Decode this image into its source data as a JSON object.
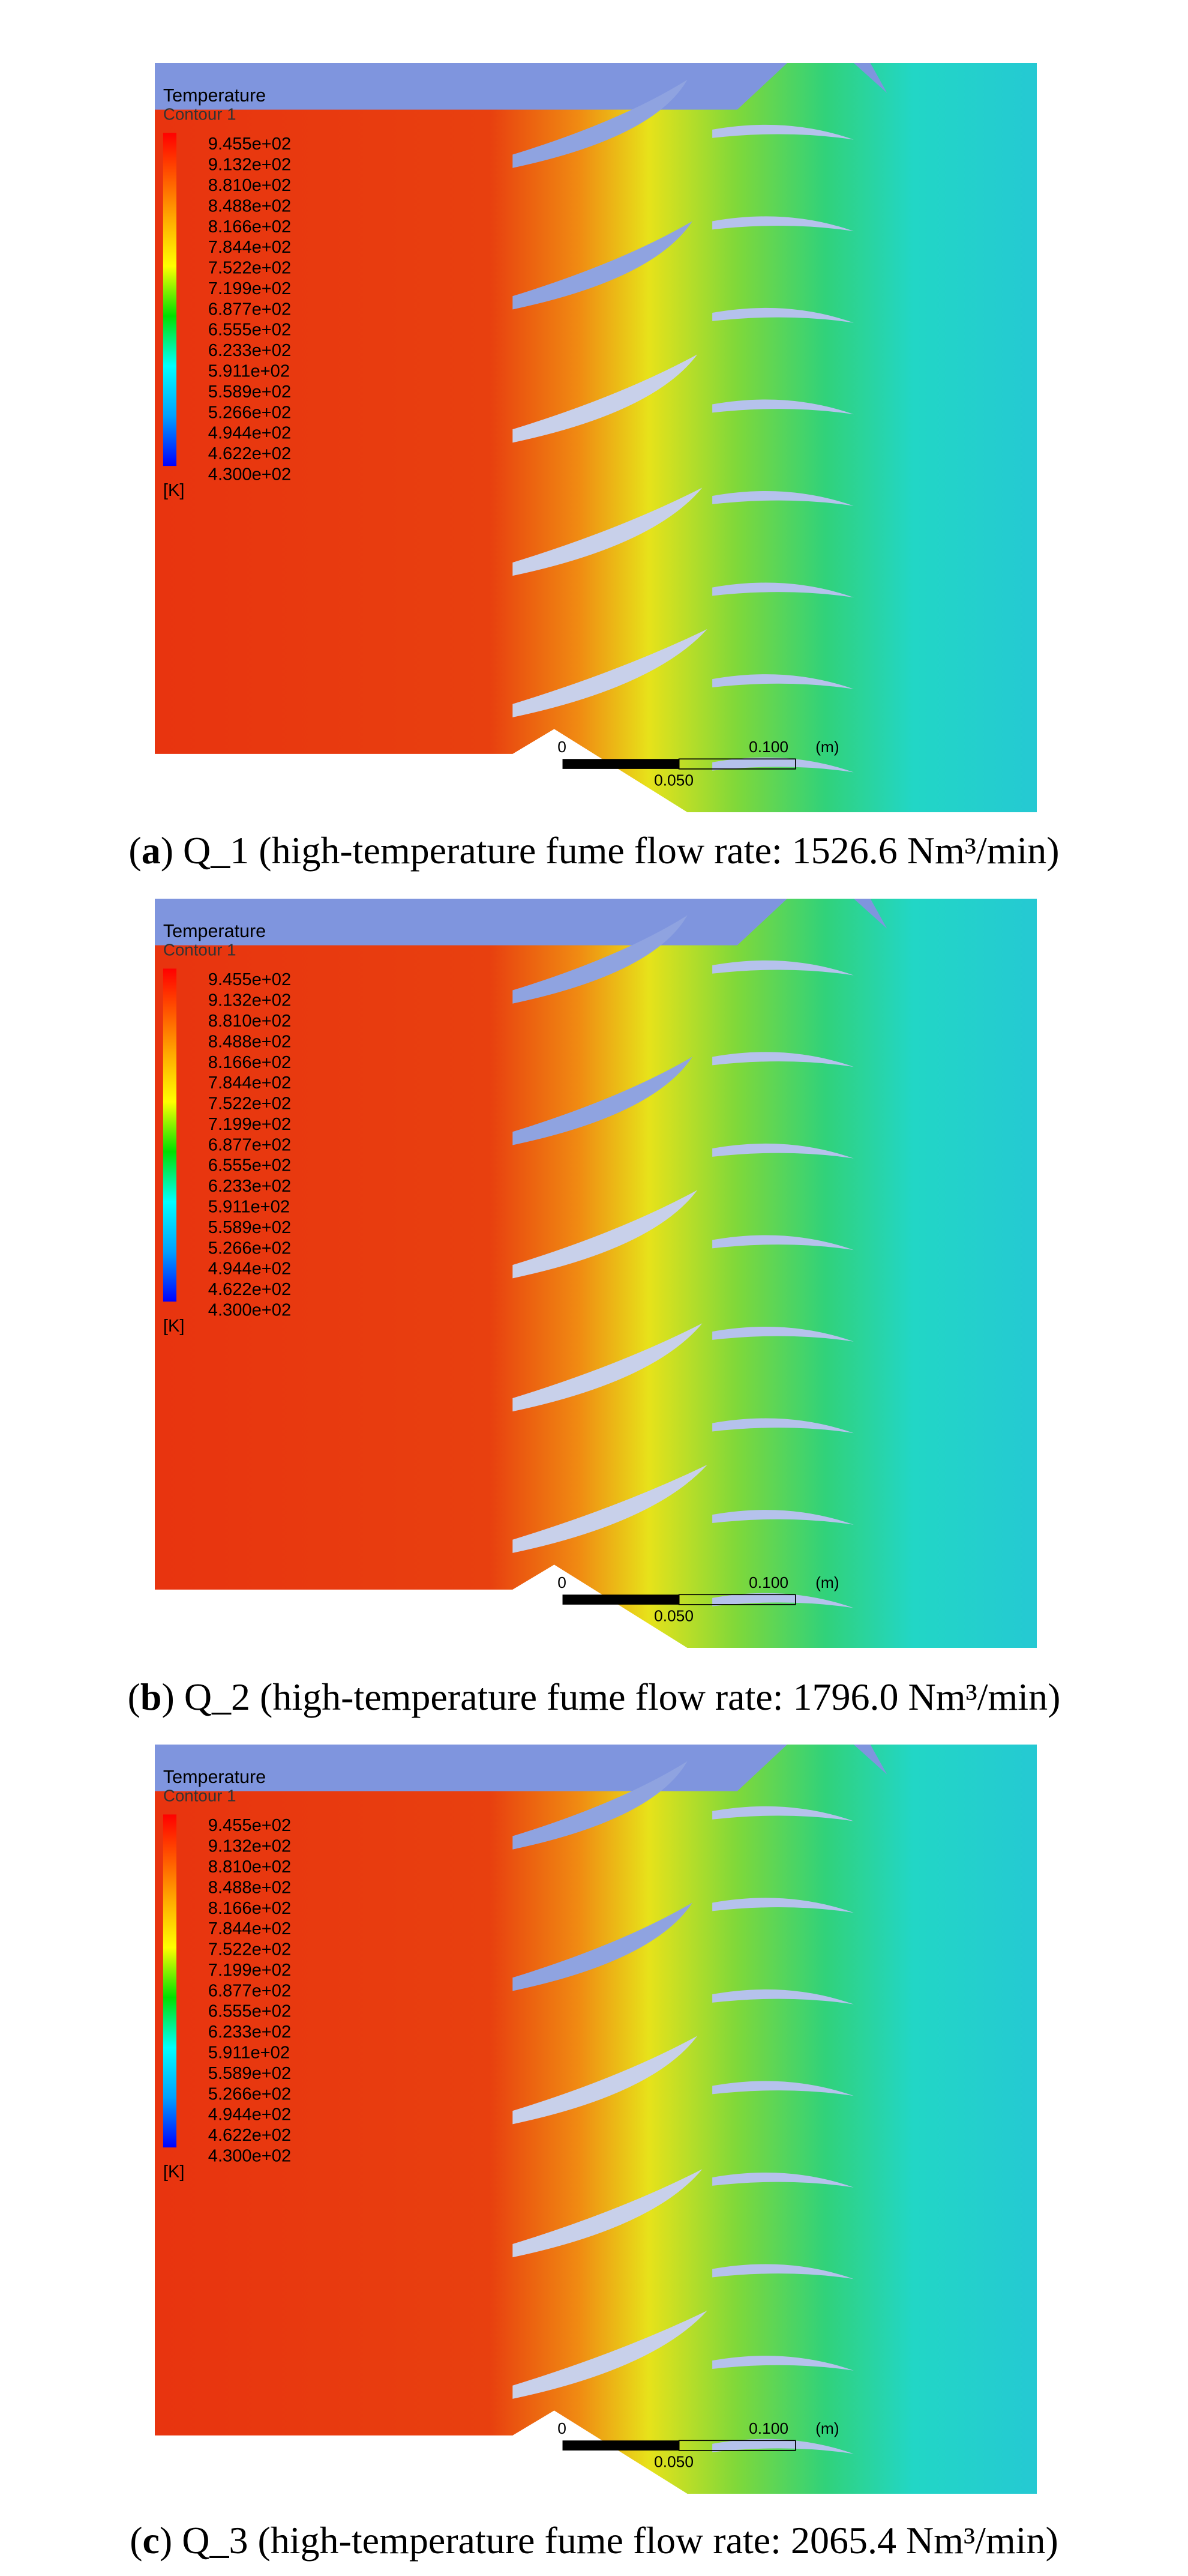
{
  "panels": [
    {
      "legend": {
        "title": "Temperature",
        "subtitle": "Contour 1",
        "labels": [
          "9.455e+02",
          "9.132e+02",
          "8.810e+02",
          "8.488e+02",
          "8.166e+02",
          "7.844e+02",
          "7.522e+02",
          "7.199e+02",
          "6.877e+02",
          "6.555e+02",
          "6.233e+02",
          "5.911e+02",
          "5.589e+02",
          "5.266e+02",
          "4.944e+02",
          "4.622e+02",
          "4.300e+02"
        ],
        "unit": "[K]"
      },
      "scale": {
        "zero": "0",
        "max": "0.100",
        "unit": "(m)",
        "mid": "0.050"
      },
      "caption": {
        "open": "(",
        "letter": "a",
        "rest": ") Q_1 (high-temperature fume flow rate: 1526.6 Nm³/min)"
      }
    },
    {
      "legend": {
        "title": "Temperature",
        "subtitle": "Contour 1",
        "labels": [
          "9.455e+02",
          "9.132e+02",
          "8.810e+02",
          "8.488e+02",
          "8.166e+02",
          "7.844e+02",
          "7.522e+02",
          "7.199e+02",
          "6.877e+02",
          "6.555e+02",
          "6.233e+02",
          "5.911e+02",
          "5.589e+02",
          "5.266e+02",
          "4.944e+02",
          "4.622e+02",
          "4.300e+02"
        ],
        "unit": "[K]"
      },
      "scale": {
        "zero": "0",
        "max": "0.100",
        "unit": "(m)",
        "mid": "0.050"
      },
      "caption": {
        "open": "(",
        "letter": "b",
        "rest": ") Q_2 (high-temperature fume flow rate: 1796.0 Nm³/min)"
      }
    },
    {
      "legend": {
        "title": "Temperature",
        "subtitle": "Contour 1",
        "labels": [
          "9.455e+02",
          "9.132e+02",
          "8.810e+02",
          "8.488e+02",
          "8.166e+02",
          "7.844e+02",
          "7.522e+02",
          "7.199e+02",
          "6.877e+02",
          "6.555e+02",
          "6.233e+02",
          "5.911e+02",
          "5.589e+02",
          "5.266e+02",
          "4.944e+02",
          "4.622e+02",
          "4.300e+02"
        ],
        "unit": "[K]"
      },
      "scale": {
        "zero": "0",
        "max": "0.100",
        "unit": "(m)",
        "mid": "0.050"
      },
      "caption": {
        "open": "(",
        "letter": "c",
        "rest": ") Q_3 (high-temperature fume flow rate: 2065.4 Nm³/min)"
      }
    }
  ]
}
